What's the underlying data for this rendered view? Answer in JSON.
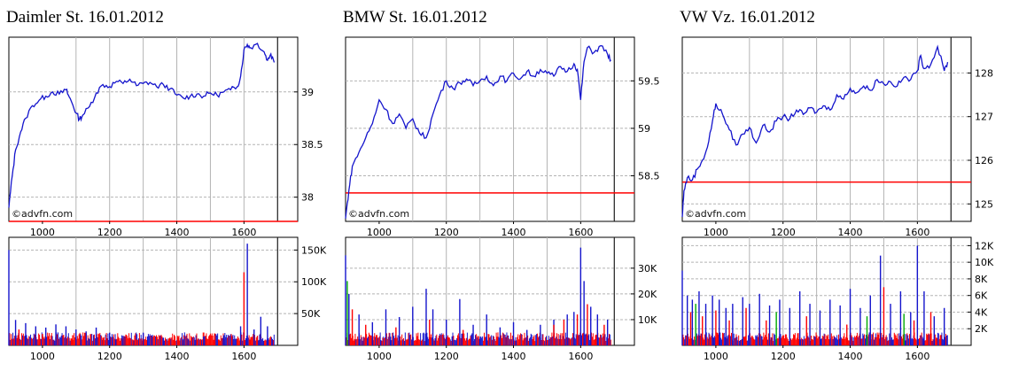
{
  "colors": {
    "price_line": "#1414cc",
    "reference_line": "#ff0000",
    "grid": "#b4b4b4",
    "volume_blue": "#1414cc",
    "volume_red": "#ff0000",
    "volume_green": "#00aa00"
  },
  "watermark": "©advfn.com",
  "panels": [
    {
      "title": "Daimler St. 16.01.2012"
    },
    {
      "title": "BMW St. 16.01.2012"
    },
    {
      "title": "VW Vz. 16.01.2012"
    }
  ],
  "chart_data": [
    {
      "type": "line",
      "title": "Daimler St. 16.01.2012",
      "xlabel": "",
      "ylabel": "",
      "xlim": [
        900,
        1760
      ],
      "ylim": [
        37.77,
        39.52
      ],
      "xticks": [
        1000,
        1200,
        1400,
        1600
      ],
      "yticks": [
        38,
        38.5,
        39
      ],
      "ytick_labels": [
        "38",
        "38.5",
        "39"
      ],
      "grid": true,
      "reference_line": 37.77,
      "x": [
        900,
        910,
        920,
        935,
        950,
        970,
        990,
        1010,
        1030,
        1050,
        1070,
        1080,
        1090,
        1100,
        1110,
        1120,
        1140,
        1160,
        1180,
        1200,
        1220,
        1240,
        1260,
        1280,
        1300,
        1320,
        1340,
        1360,
        1380,
        1400,
        1420,
        1440,
        1460,
        1480,
        1500,
        1520,
        1540,
        1560,
        1580,
        1590,
        1600,
        1610,
        1620,
        1640,
        1660,
        1670,
        1680,
        1690
      ],
      "y": [
        37.9,
        38.2,
        38.45,
        38.62,
        38.75,
        38.87,
        38.92,
        38.96,
        39.0,
        38.98,
        39.02,
        38.95,
        38.88,
        38.8,
        38.74,
        38.78,
        38.86,
        38.99,
        39.07,
        39.05,
        39.1,
        39.08,
        39.12,
        39.06,
        39.08,
        39.09,
        39.05,
        39.07,
        39.03,
        38.97,
        38.94,
        38.96,
        38.98,
        38.96,
        38.99,
        38.97,
        39.0,
        39.02,
        39.05,
        39.15,
        39.4,
        39.45,
        39.42,
        39.46,
        39.38,
        39.3,
        39.36,
        39.28
      ],
      "volume": {
        "ylim": [
          0,
          170000
        ],
        "yticks": [
          50000,
          100000,
          150000
        ],
        "ytick_labels": [
          "50K",
          "100K",
          "150K"
        ],
        "spikes_blue": [
          [
            900,
            150000
          ],
          [
            920,
            40000
          ],
          [
            950,
            35000
          ],
          [
            980,
            30000
          ],
          [
            1010,
            28000
          ],
          [
            1040,
            33000
          ],
          [
            1070,
            30000
          ],
          [
            1100,
            25000
          ],
          [
            1130,
            22000
          ],
          [
            1160,
            28000
          ],
          [
            1200,
            20000
          ],
          [
            1240,
            15000
          ],
          [
            1300,
            20000
          ],
          [
            1360,
            12000
          ],
          [
            1420,
            10000
          ],
          [
            1480,
            14000
          ],
          [
            1540,
            16000
          ],
          [
            1590,
            30000
          ],
          [
            1610,
            160000
          ],
          [
            1630,
            25000
          ],
          [
            1650,
            45000
          ],
          [
            1670,
            30000
          ]
        ],
        "spikes_red": [
          [
            930,
            25000
          ],
          [
            1000,
            18000
          ],
          [
            1090,
            16000
          ],
          [
            1180,
            12000
          ],
          [
            1280,
            9000
          ],
          [
            1600,
            115000
          ],
          [
            1640,
            15000
          ]
        ]
      }
    },
    {
      "type": "line",
      "title": "BMW St. 16.01.2012",
      "xlabel": "",
      "ylabel": "",
      "xlim": [
        900,
        1760
      ],
      "ylim": [
        58.02,
        59.96
      ],
      "xticks": [
        1000,
        1200,
        1400,
        1600
      ],
      "yticks": [
        58.5,
        59,
        59.5
      ],
      "ytick_labels": [
        "58.5",
        "59",
        "59.5"
      ],
      "grid": true,
      "reference_line": 58.32,
      "x": [
        900,
        910,
        920,
        940,
        960,
        980,
        1000,
        1020,
        1040,
        1060,
        1080,
        1100,
        1120,
        1140,
        1160,
        1180,
        1200,
        1220,
        1240,
        1260,
        1280,
        1300,
        1320,
        1340,
        1360,
        1380,
        1400,
        1420,
        1440,
        1460,
        1480,
        1500,
        1520,
        1540,
        1560,
        1580,
        1590,
        1600,
        1610,
        1620,
        1640,
        1660,
        1680,
        1690
      ],
      "y": [
        58.05,
        58.35,
        58.6,
        58.75,
        58.9,
        59.05,
        59.3,
        59.2,
        59.05,
        59.15,
        59.0,
        59.1,
        58.95,
        58.9,
        59.15,
        59.35,
        59.5,
        59.42,
        59.48,
        59.52,
        59.45,
        59.5,
        59.55,
        59.45,
        59.55,
        59.5,
        59.58,
        59.52,
        59.6,
        59.55,
        59.62,
        59.58,
        59.55,
        59.65,
        59.6,
        59.68,
        59.62,
        59.3,
        59.7,
        59.85,
        59.8,
        59.87,
        59.78,
        59.72
      ],
      "volume": {
        "ylim": [
          0,
          42000
        ],
        "yticks": [
          10000,
          20000,
          30000
        ],
        "ytick_labels": [
          "10K",
          "20K",
          "30K"
        ],
        "spikes_blue": [
          [
            900,
            35000
          ],
          [
            910,
            20000
          ],
          [
            940,
            12000
          ],
          [
            980,
            9000
          ],
          [
            1020,
            14000
          ],
          [
            1060,
            11000
          ],
          [
            1100,
            15000
          ],
          [
            1140,
            22000
          ],
          [
            1160,
            14000
          ],
          [
            1200,
            10000
          ],
          [
            1240,
            18000
          ],
          [
            1280,
            8000
          ],
          [
            1320,
            12000
          ],
          [
            1360,
            7000
          ],
          [
            1400,
            9000
          ],
          [
            1440,
            6000
          ],
          [
            1480,
            8000
          ],
          [
            1520,
            10000
          ],
          [
            1560,
            12000
          ],
          [
            1580,
            13000
          ],
          [
            1600,
            38000
          ],
          [
            1610,
            25000
          ],
          [
            1630,
            15000
          ],
          [
            1650,
            12000
          ],
          [
            1680,
            10000
          ]
        ],
        "spikes_red": [
          [
            920,
            14000
          ],
          [
            960,
            8000
          ],
          [
            1050,
            7000
          ],
          [
            1150,
            10000
          ],
          [
            1250,
            6000
          ],
          [
            1520,
            8000
          ],
          [
            1550,
            10000
          ],
          [
            1590,
            12000
          ],
          [
            1620,
            16000
          ],
          [
            1670,
            8000
          ]
        ],
        "spikes_green": [
          [
            905,
            25000
          ]
        ]
      }
    },
    {
      "type": "line",
      "title": "VW Vz. 16.01.2012",
      "xlabel": "",
      "ylabel": "",
      "xlim": [
        900,
        1760
      ],
      "ylim": [
        124.6,
        128.82
      ],
      "xticks": [
        1000,
        1200,
        1400,
        1600
      ],
      "yticks": [
        125,
        126,
        127,
        128
      ],
      "ytick_labels": [
        "125",
        "126",
        "127",
        "128"
      ],
      "grid": true,
      "reference_line": 125.5,
      "x": [
        900,
        905,
        915,
        930,
        945,
        960,
        975,
        990,
        1000,
        1020,
        1040,
        1060,
        1080,
        1100,
        1120,
        1140,
        1160,
        1180,
        1200,
        1220,
        1240,
        1260,
        1280,
        1300,
        1320,
        1340,
        1360,
        1380,
        1400,
        1420,
        1440,
        1460,
        1480,
        1500,
        1520,
        1540,
        1560,
        1580,
        1600,
        1610,
        1620,
        1640,
        1660,
        1680,
        1690
      ],
      "y": [
        124.7,
        125.3,
        125.6,
        125.55,
        125.8,
        126.0,
        126.3,
        126.9,
        127.3,
        127.05,
        126.7,
        126.35,
        126.6,
        126.75,
        126.4,
        126.8,
        126.65,
        126.9,
        127.0,
        126.95,
        127.15,
        127.05,
        127.2,
        127.1,
        127.25,
        127.15,
        127.5,
        127.4,
        127.65,
        127.55,
        127.7,
        127.6,
        127.85,
        127.75,
        127.8,
        127.7,
        127.9,
        127.85,
        128.05,
        128.4,
        128.1,
        128.2,
        128.6,
        128.05,
        128.25
      ],
      "volume": {
        "ylim": [
          0,
          13000
        ],
        "yticks": [
          2000,
          4000,
          6000,
          8000,
          10000,
          12000
        ],
        "ytick_labels": [
          "2K",
          "4K",
          "6K",
          "8K",
          "10K",
          "12K"
        ],
        "spikes_blue": [
          [
            900,
            9000
          ],
          [
            915,
            6000
          ],
          [
            930,
            5500
          ],
          [
            950,
            6500
          ],
          [
            970,
            5000
          ],
          [
            990,
            6000
          ],
          [
            1010,
            5500
          ],
          [
            1030,
            4500
          ],
          [
            1050,
            5000
          ],
          [
            1080,
            5800
          ],
          [
            1100,
            5000
          ],
          [
            1130,
            6200
          ],
          [
            1160,
            4800
          ],
          [
            1190,
            5500
          ],
          [
            1220,
            4500
          ],
          [
            1250,
            6500
          ],
          [
            1280,
            5000
          ],
          [
            1310,
            4200
          ],
          [
            1340,
            5500
          ],
          [
            1370,
            4800
          ],
          [
            1400,
            6800
          ],
          [
            1430,
            4500
          ],
          [
            1460,
            6000
          ],
          [
            1490,
            10800
          ],
          [
            1520,
            5000
          ],
          [
            1550,
            6500
          ],
          [
            1580,
            4000
          ],
          [
            1600,
            12000
          ],
          [
            1620,
            6500
          ],
          [
            1650,
            3500
          ],
          [
            1680,
            4500
          ]
        ],
        "spikes_red": [
          [
            925,
            4000
          ],
          [
            960,
            3500
          ],
          [
            1000,
            4200
          ],
          [
            1040,
            3000
          ],
          [
            1090,
            4500
          ],
          [
            1150,
            3000
          ],
          [
            1270,
            3500
          ],
          [
            1390,
            2500
          ],
          [
            1500,
            7000
          ],
          [
            1590,
            3000
          ],
          [
            1640,
            4000
          ]
        ],
        "spikes_green": [
          [
            940,
            5000
          ],
          [
            1180,
            4000
          ],
          [
            1450,
            3500
          ],
          [
            1560,
            3800
          ]
        ]
      }
    }
  ]
}
